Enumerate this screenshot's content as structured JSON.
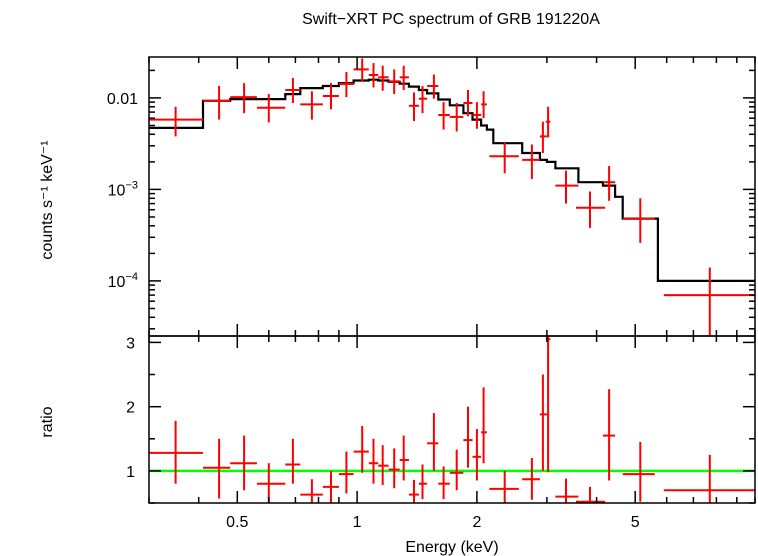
{
  "chart_data": [
    {
      "type": "scatter",
      "panel": "spectrum",
      "title": "Swift−XRT PC spectrum of GRB 191220A",
      "ylabel": "counts s⁻¹ keV⁻¹",
      "xscale": "log",
      "yscale": "log",
      "xlim": [
        0.3,
        10
      ],
      "ylim": [
        2.5e-05,
        0.028
      ],
      "ytick_labels": [
        {
          "value": 0.01,
          "label": "0.01"
        },
        {
          "value": 0.001,
          "base": "10",
          "exp": "−3"
        },
        {
          "value": 0.0001,
          "base": "10",
          "exp": "−4"
        }
      ],
      "data": [
        {
          "x": 0.35,
          "xerr": [
            0.3,
            0.41
          ],
          "y": 0.0058,
          "yerr": [
            0.0038,
            0.008
          ]
        },
        {
          "x": 0.45,
          "xerr": [
            0.41,
            0.48
          ],
          "y": 0.0093,
          "yerr": [
            0.0058,
            0.0135
          ]
        },
        {
          "x": 0.52,
          "xerr": [
            0.48,
            0.56
          ],
          "y": 0.0102,
          "yerr": [
            0.0068,
            0.0145
          ]
        },
        {
          "x": 0.6,
          "xerr": [
            0.56,
            0.66
          ],
          "y": 0.0078,
          "yerr": [
            0.0054,
            0.011
          ]
        },
        {
          "x": 0.69,
          "xerr": [
            0.66,
            0.72
          ],
          "y": 0.0122,
          "yerr": [
            0.0088,
            0.0165
          ]
        },
        {
          "x": 0.77,
          "xerr": [
            0.72,
            0.82
          ],
          "y": 0.0085,
          "yerr": [
            0.0058,
            0.0118
          ]
        },
        {
          "x": 0.86,
          "xerr": [
            0.82,
            0.9
          ],
          "y": 0.0105,
          "yerr": [
            0.0075,
            0.0145
          ]
        },
        {
          "x": 0.94,
          "xerr": [
            0.9,
            0.98
          ],
          "y": 0.0142,
          "yerr": [
            0.0102,
            0.0192
          ]
        },
        {
          "x": 1.03,
          "xerr": [
            0.98,
            1.07
          ],
          "y": 0.0205,
          "yerr": [
            0.015,
            0.027
          ]
        },
        {
          "x": 1.1,
          "xerr": [
            1.07,
            1.13
          ],
          "y": 0.0178,
          "yerr": [
            0.013,
            0.024
          ]
        },
        {
          "x": 1.16,
          "xerr": [
            1.13,
            1.2
          ],
          "y": 0.0168,
          "yerr": [
            0.012,
            0.0225
          ]
        },
        {
          "x": 1.24,
          "xerr": [
            1.2,
            1.28
          ],
          "y": 0.0152,
          "yerr": [
            0.011,
            0.0205
          ]
        },
        {
          "x": 1.31,
          "xerr": [
            1.28,
            1.35
          ],
          "y": 0.0168,
          "yerr": [
            0.0122,
            0.0225
          ]
        },
        {
          "x": 1.39,
          "xerr": [
            1.35,
            1.43
          ],
          "y": 0.0082,
          "yerr": [
            0.0056,
            0.0115
          ]
        },
        {
          "x": 1.46,
          "xerr": [
            1.43,
            1.5
          ],
          "y": 0.0098,
          "yerr": [
            0.0068,
            0.0135
          ]
        },
        {
          "x": 1.56,
          "xerr": [
            1.5,
            1.6
          ],
          "y": 0.0135,
          "yerr": [
            0.0098,
            0.018
          ]
        },
        {
          "x": 1.65,
          "xerr": [
            1.6,
            1.71
          ],
          "y": 0.0065,
          "yerr": [
            0.0045,
            0.009
          ]
        },
        {
          "x": 1.78,
          "xerr": [
            1.71,
            1.85
          ],
          "y": 0.0062,
          "yerr": [
            0.0043,
            0.0088
          ]
        },
        {
          "x": 1.9,
          "xerr": [
            1.85,
            1.95
          ],
          "y": 0.0088,
          "yerr": [
            0.0063,
            0.0122
          ]
        },
        {
          "x": 2.0,
          "xerr": [
            1.95,
            2.05
          ],
          "y": 0.0065,
          "yerr": [
            0.0046,
            0.009
          ]
        },
        {
          "x": 2.08,
          "xerr": [
            2.05,
            2.12
          ],
          "y": 0.0085,
          "yerr": [
            0.006,
            0.0118
          ]
        },
        {
          "x": 2.35,
          "xerr": [
            2.15,
            2.55
          ],
          "y": 0.0023,
          "yerr": [
            0.0015,
            0.0033
          ]
        },
        {
          "x": 2.75,
          "xerr": [
            2.6,
            2.88
          ],
          "y": 0.0021,
          "yerr": [
            0.0013,
            0.0031
          ]
        },
        {
          "x": 2.93,
          "xerr": [
            2.88,
            3.0
          ],
          "y": 0.0038,
          "yerr": [
            0.0025,
            0.0055
          ]
        },
        {
          "x": 3.02,
          "xerr": [
            2.98,
            3.06
          ],
          "y": 0.0055,
          "yerr": [
            0.0037,
            0.008
          ]
        },
        {
          "x": 3.35,
          "xerr": [
            3.15,
            3.6
          ],
          "y": 0.0011,
          "yerr": [
            0.0007,
            0.0016
          ]
        },
        {
          "x": 3.85,
          "xerr": [
            3.55,
            4.2
          ],
          "y": 0.00063,
          "yerr": [
            0.00038,
            0.00095
          ]
        },
        {
          "x": 4.3,
          "xerr": [
            4.15,
            4.45
          ],
          "y": 0.0012,
          "yerr": [
            0.00075,
            0.0018
          ]
        },
        {
          "x": 5.15,
          "xerr": [
            4.65,
            5.6
          ],
          "y": 0.00048,
          "yerr": [
            0.00026,
            0.0008
          ]
        },
        {
          "x": 7.7,
          "xerr": [
            5.9,
            10.0
          ],
          "y": 7e-05,
          "yerr": [
            2.5e-05,
            0.00014
          ]
        }
      ],
      "model": [
        {
          "x": 0.3,
          "y": 0.0047
        },
        {
          "x": 0.41,
          "y": 0.0093
        },
        {
          "x": 0.48,
          "y": 0.0097
        },
        {
          "x": 0.56,
          "y": 0.0097
        },
        {
          "x": 0.66,
          "y": 0.011
        },
        {
          "x": 0.72,
          "y": 0.0128
        },
        {
          "x": 0.82,
          "y": 0.0135
        },
        {
          "x": 0.9,
          "y": 0.0145
        },
        {
          "x": 0.98,
          "y": 0.0155
        },
        {
          "x": 1.07,
          "y": 0.0158
        },
        {
          "x": 1.13,
          "y": 0.0155
        },
        {
          "x": 1.2,
          "y": 0.015
        },
        {
          "x": 1.28,
          "y": 0.0143
        },
        {
          "x": 1.35,
          "y": 0.0133
        },
        {
          "x": 1.43,
          "y": 0.0122
        },
        {
          "x": 1.5,
          "y": 0.0112
        },
        {
          "x": 1.6,
          "y": 0.0096
        },
        {
          "x": 1.71,
          "y": 0.0083
        },
        {
          "x": 1.85,
          "y": 0.0068
        },
        {
          "x": 1.95,
          "y": 0.0058
        },
        {
          "x": 2.05,
          "y": 0.005
        },
        {
          "x": 2.12,
          "y": 0.0045
        },
        {
          "x": 2.2,
          "y": 0.0032
        },
        {
          "x": 2.6,
          "y": 0.0025
        },
        {
          "x": 2.88,
          "y": 0.0021
        },
        {
          "x": 3.0,
          "y": 0.002
        },
        {
          "x": 3.15,
          "y": 0.0017
        },
        {
          "x": 3.6,
          "y": 0.0012
        },
        {
          "x": 4.15,
          "y": 0.0011
        },
        {
          "x": 4.45,
          "y": 0.00083
        },
        {
          "x": 4.65,
          "y": 0.00048
        },
        {
          "x": 5.7,
          "y": 0.0001
        },
        {
          "x": 10.0,
          "y": 0.0001
        }
      ],
      "colors": {
        "data": "#ff0000",
        "model": "#000000"
      }
    },
    {
      "type": "scatter",
      "panel": "ratio",
      "xlabel": "Energy (keV)",
      "ylabel": "ratio",
      "xscale": "log",
      "xlim": [
        0.3,
        10
      ],
      "ylim": [
        0.5,
        3.1
      ],
      "xtick_labels": [
        {
          "value": 0.5,
          "label": "0.5"
        },
        {
          "value": 1,
          "label": "1"
        },
        {
          "value": 2,
          "label": "2"
        },
        {
          "value": 5,
          "label": "5"
        }
      ],
      "ytick_labels": [
        {
          "value": 1,
          "label": "1"
        },
        {
          "value": 2,
          "label": "2"
        },
        {
          "value": 3,
          "label": "3"
        }
      ],
      "reference_line": 1,
      "data": [
        {
          "x": 0.35,
          "xerr": [
            0.3,
            0.41
          ],
          "y": 1.28,
          "yerr": [
            0.8,
            1.78
          ]
        },
        {
          "x": 0.45,
          "xerr": [
            0.41,
            0.48
          ],
          "y": 1.05,
          "yerr": [
            0.57,
            1.5
          ]
        },
        {
          "x": 0.52,
          "xerr": [
            0.48,
            0.56
          ],
          "y": 1.12,
          "yerr": [
            0.7,
            1.55
          ]
        },
        {
          "x": 0.6,
          "xerr": [
            0.56,
            0.66
          ],
          "y": 0.8,
          "yerr": [
            0.5,
            1.12
          ]
        },
        {
          "x": 0.69,
          "xerr": [
            0.66,
            0.72
          ],
          "y": 1.1,
          "yerr": [
            0.8,
            1.5
          ]
        },
        {
          "x": 0.77,
          "xerr": [
            0.72,
            0.82
          ],
          "y": 0.63,
          "yerr": [
            0.45,
            0.87
          ]
        },
        {
          "x": 0.86,
          "xerr": [
            0.82,
            0.9
          ],
          "y": 0.75,
          "yerr": [
            0.5,
            1.0
          ]
        },
        {
          "x": 0.94,
          "xerr": [
            0.9,
            0.98
          ],
          "y": 0.95,
          "yerr": [
            0.65,
            1.3
          ]
        },
        {
          "x": 1.03,
          "xerr": [
            0.98,
            1.07
          ],
          "y": 1.3,
          "yerr": [
            0.97,
            1.7
          ]
        },
        {
          "x": 1.1,
          "xerr": [
            1.07,
            1.13
          ],
          "y": 1.12,
          "yerr": [
            0.8,
            1.5
          ]
        },
        {
          "x": 1.16,
          "xerr": [
            1.13,
            1.2
          ],
          "y": 1.08,
          "yerr": [
            0.78,
            1.4
          ]
        },
        {
          "x": 1.24,
          "xerr": [
            1.2,
            1.28
          ],
          "y": 1.02,
          "yerr": [
            0.73,
            1.35
          ]
        },
        {
          "x": 1.31,
          "xerr": [
            1.28,
            1.35
          ],
          "y": 1.17,
          "yerr": [
            0.85,
            1.55
          ]
        },
        {
          "x": 1.39,
          "xerr": [
            1.35,
            1.43
          ],
          "y": 0.63,
          "yerr": [
            0.45,
            0.86
          ]
        },
        {
          "x": 1.46,
          "xerr": [
            1.43,
            1.5
          ],
          "y": 0.8,
          "yerr": [
            0.56,
            1.1
          ]
        },
        {
          "x": 1.56,
          "xerr": [
            1.5,
            1.6
          ],
          "y": 1.43,
          "yerr": [
            1.0,
            1.9
          ]
        },
        {
          "x": 1.65,
          "xerr": [
            1.6,
            1.71
          ],
          "y": 0.8,
          "yerr": [
            0.56,
            1.07
          ]
        },
        {
          "x": 1.78,
          "xerr": [
            1.71,
            1.85
          ],
          "y": 0.97,
          "yerr": [
            0.7,
            1.33
          ]
        },
        {
          "x": 1.9,
          "xerr": [
            1.85,
            1.95
          ],
          "y": 1.48,
          "yerr": [
            1.05,
            2.0
          ]
        },
        {
          "x": 2.0,
          "xerr": [
            1.95,
            2.05
          ],
          "y": 1.22,
          "yerr": [
            0.85,
            1.65
          ]
        },
        {
          "x": 2.08,
          "xerr": [
            2.05,
            2.12
          ],
          "y": 1.6,
          "yerr": [
            1.12,
            2.3
          ]
        },
        {
          "x": 2.35,
          "xerr": [
            2.15,
            2.55
          ],
          "y": 0.72,
          "yerr": [
            0.45,
            1.0
          ]
        },
        {
          "x": 2.75,
          "xerr": [
            2.6,
            2.88
          ],
          "y": 0.87,
          "yerr": [
            0.55,
            1.2
          ]
        },
        {
          "x": 2.93,
          "xerr": [
            2.88,
            3.0
          ],
          "y": 1.88,
          "yerr": [
            1.0,
            2.5
          ]
        },
        {
          "x": 3.02,
          "xerr": [
            2.98,
            3.06
          ],
          "y": 3.05,
          "yerr": [
            0.98,
            3.1
          ]
        },
        {
          "x": 3.35,
          "xerr": [
            3.15,
            3.6
          ],
          "y": 0.6,
          "yerr": [
            0.4,
            0.88
          ]
        },
        {
          "x": 3.85,
          "xerr": [
            3.55,
            4.2
          ],
          "y": 0.52,
          "yerr": [
            0.5,
            0.75
          ]
        },
        {
          "x": 4.3,
          "xerr": [
            4.15,
            4.45
          ],
          "y": 1.55,
          "yerr": [
            0.85,
            2.27
          ]
        },
        {
          "x": 5.15,
          "xerr": [
            4.65,
            5.6
          ],
          "y": 0.95,
          "yerr": [
            0.52,
            1.45
          ]
        },
        {
          "x": 7.7,
          "xerr": [
            5.9,
            10.0
          ],
          "y": 0.7,
          "yerr": [
            0.5,
            1.25
          ]
        }
      ],
      "colors": {
        "data": "#ff0000",
        "reference_line": "#00ff00"
      }
    }
  ]
}
